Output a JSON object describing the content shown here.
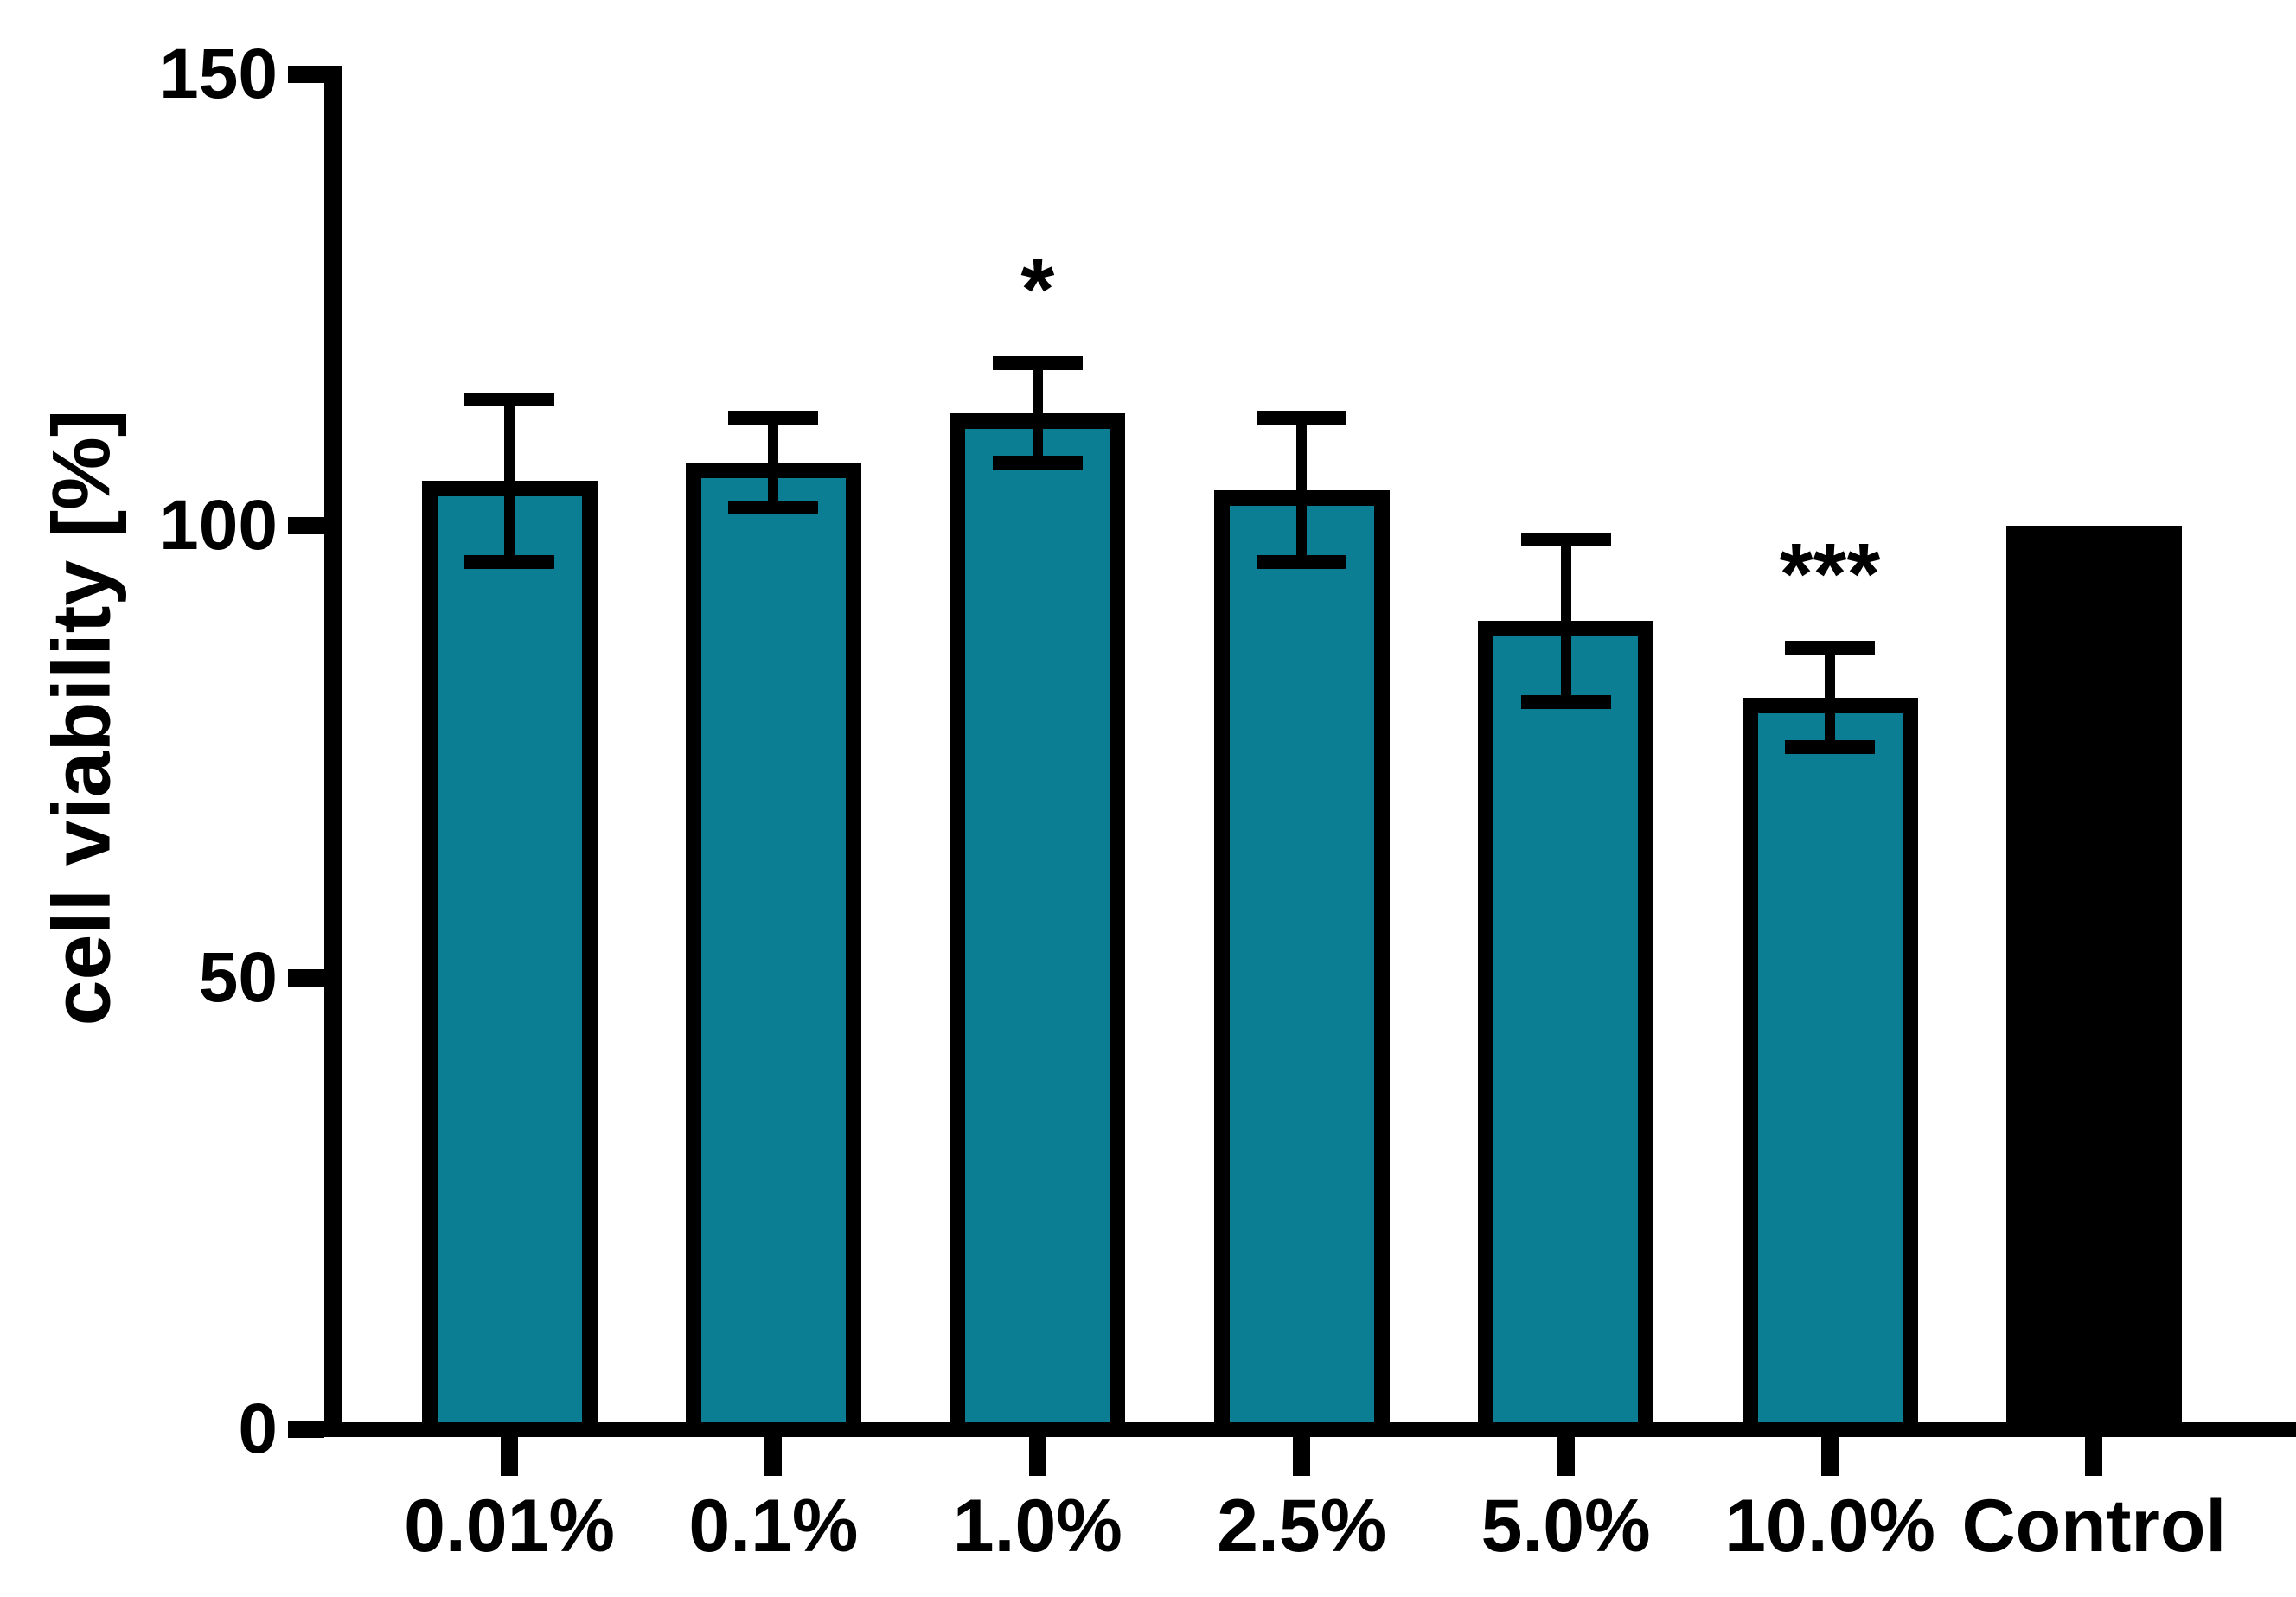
{
  "figure": {
    "background": "#ffffff",
    "axis_color": "#000000",
    "bar_fill_teal": "#0c7e93",
    "bar_fill_control": "#000000",
    "bar_border": "#000000"
  },
  "chart_data": {
    "type": "bar",
    "title": "",
    "xlabel": "",
    "ylabel": "cell viability [%]",
    "ylim": [
      0,
      150
    ],
    "yticks": [
      0,
      50,
      100,
      150
    ],
    "grid": false,
    "legend": "none",
    "categories": [
      "0.01%",
      "0.1%",
      "1.0%",
      "2.5%",
      "5.0%",
      "10.0%",
      "Control"
    ],
    "series": [
      {
        "name": "cell viability",
        "values": [
          105,
          107,
          112.5,
          104,
          89.5,
          81,
          100
        ],
        "errors_sd": [
          9,
          5,
          5.5,
          8,
          9,
          5.5,
          null
        ],
        "significance": [
          "",
          "",
          "*",
          "",
          "",
          "***",
          ""
        ],
        "bar_style": [
          "teal",
          "teal",
          "teal",
          "teal",
          "teal",
          "teal",
          "control"
        ]
      }
    ]
  }
}
